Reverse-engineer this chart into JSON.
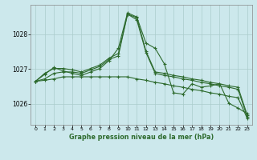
{
  "title": "Graphe pression niveau de la mer (hPa)",
  "background_color": "#cce8ec",
  "grid_color": "#aacccc",
  "line_color": "#2d6a2d",
  "xlim": [
    -0.5,
    23.5
  ],
  "ylim": [
    1025.4,
    1028.85
  ],
  "yticks": [
    1026,
    1027,
    1028
  ],
  "xticks": [
    0,
    1,
    2,
    3,
    4,
    5,
    6,
    7,
    8,
    9,
    10,
    11,
    12,
    13,
    14,
    15,
    16,
    17,
    18,
    19,
    20,
    21,
    22,
    23
  ],
  "series": [
    [
      1026.65,
      1026.85,
      1027.05,
      1026.95,
      1026.88,
      1026.82,
      1026.92,
      1027.02,
      1027.25,
      1027.6,
      1028.62,
      1028.5,
      1027.75,
      1027.6,
      1027.15,
      1026.32,
      1026.28,
      1026.58,
      1026.48,
      1026.52,
      1026.58,
      1026.02,
      1025.88,
      1025.72
    ],
    [
      1026.65,
      1026.88,
      1027.02,
      1027.02,
      1026.98,
      1026.92,
      1027.02,
      1027.12,
      1027.32,
      1027.45,
      1028.58,
      1028.48,
      1027.52,
      1026.92,
      1026.88,
      1026.82,
      1026.78,
      1026.72,
      1026.68,
      1026.62,
      1026.58,
      1026.52,
      1026.48,
      1025.68
    ],
    [
      1026.65,
      1026.72,
      1026.88,
      1026.92,
      1026.92,
      1026.88,
      1026.98,
      1027.08,
      1027.28,
      1027.38,
      1028.58,
      1028.42,
      1027.48,
      1026.88,
      1026.82,
      1026.78,
      1026.72,
      1026.68,
      1026.62,
      1026.58,
      1026.52,
      1026.48,
      1026.42,
      1025.62
    ],
    [
      1026.65,
      1026.68,
      1026.72,
      1026.78,
      1026.78,
      1026.78,
      1026.78,
      1026.78,
      1026.78,
      1026.78,
      1026.78,
      1026.72,
      1026.68,
      1026.62,
      1026.58,
      1026.52,
      1026.48,
      1026.42,
      1026.38,
      1026.32,
      1026.28,
      1026.22,
      1026.18,
      1025.58
    ]
  ]
}
